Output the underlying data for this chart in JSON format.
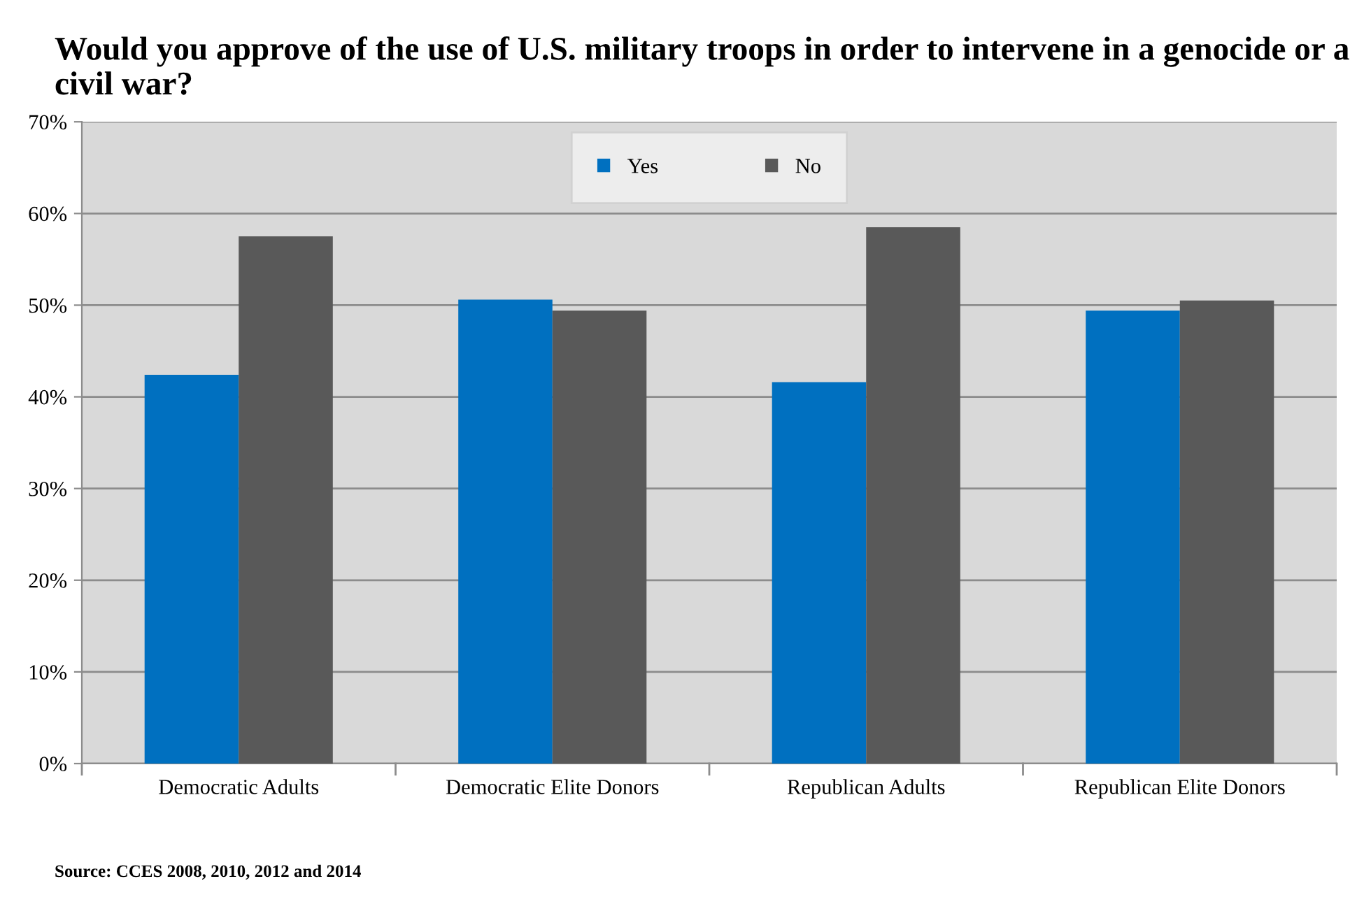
{
  "chart_data": {
    "type": "bar",
    "title": "Would you approve of the use of U.S. military troops in order to intervene in a genocide or a civil war?",
    "categories": [
      "Democratic Adults",
      "Democratic Elite Donors",
      "Republican Adults",
      "Republican Elite Donors"
    ],
    "series": [
      {
        "name": "Yes",
        "color": "#0070c0",
        "values": [
          42.4,
          50.6,
          41.6,
          49.4
        ]
      },
      {
        "name": "No",
        "color": "#595959",
        "values": [
          57.5,
          49.4,
          58.5,
          50.5
        ]
      }
    ],
    "ylim": [
      0,
      70
    ],
    "yticks": [
      {
        "value": 0,
        "label": "0%"
      },
      {
        "value": 10,
        "label": "10%"
      },
      {
        "value": 20,
        "label": "20%"
      },
      {
        "value": 30,
        "label": "30%"
      },
      {
        "value": 40,
        "label": "40%"
      },
      {
        "value": 50,
        "label": "50%"
      },
      {
        "value": 60,
        "label": "60%"
      },
      {
        "value": 70,
        "label": "70%"
      }
    ],
    "grid": "y",
    "legend": "top",
    "annotations": [
      "Source: CCES 2008, 2010, 2012 and 2014"
    ]
  }
}
